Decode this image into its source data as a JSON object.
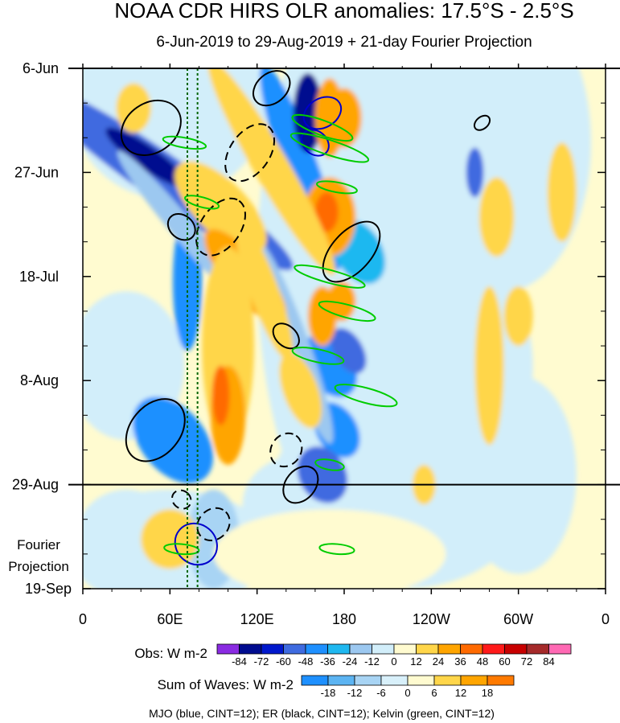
{
  "chart_data": {
    "type": "heatmap",
    "title": "NOAA CDR HIRS OLR anomalies: 17.5°S - 2.5°S",
    "subtitle": "6-Jun-2019 to 29-Aug-2019 + 21-day Fourier Projection",
    "x_ticks": [
      "0",
      "60E",
      "120E",
      "180",
      "120W",
      "60W",
      "0"
    ],
    "x_range_deg_east": [
      0,
      360
    ],
    "x_tick_values": [
      0,
      60,
      120,
      180,
      240,
      300,
      360
    ],
    "y_ticks": [
      "6-Jun",
      "27-Jun",
      "18-Jul",
      "8-Aug",
      "29-Aug",
      "19-Sep"
    ],
    "y_range": [
      "2019-06-06",
      "2019-09-19"
    ],
    "y_tick_values": [
      "2019-06-06",
      "2019-06-27",
      "2019-07-18",
      "2019-08-08",
      "2019-08-29",
      "2019-09-19"
    ],
    "y_direction": "time increases downward",
    "projection_label": "Fourier Projection",
    "projection_start": "2019-08-29",
    "reference_lines_deg_east": [
      72,
      79
    ],
    "obs_colorbar": {
      "label": "Obs: W m-2",
      "levels": [
        -84,
        -72,
        -60,
        -48,
        -36,
        -24,
        -12,
        0,
        12,
        24,
        36,
        48,
        60,
        72,
        84
      ],
      "colors": [
        "#8a2be2",
        "#000c8f",
        "#0018cc",
        "#3f6be0",
        "#1e90ff",
        "#1fb8f0",
        "#9cc8f0",
        "#d2eefa",
        "#fffbd0",
        "#ffd64a",
        "#ffa500",
        "#ff6a00",
        "#ff1a1a",
        "#c80000",
        "#a52a2a",
        "#ff69b4"
      ]
    },
    "waves_colorbar": {
      "label": "Sum of Waves: W m-2",
      "levels": [
        -18,
        -12,
        -6,
        0,
        6,
        12,
        18
      ],
      "colors": [
        "#1e90ff",
        "#5cb4f2",
        "#a8d4f4",
        "#d8f0fa",
        "#fffbd0",
        "#ffd64a",
        "#ffa500",
        "#ff7a00"
      ]
    },
    "legend_text": "MJO (blue, CINT=12); ER (black, CINT=12); Kelvin (green, CINT=12)",
    "series": [
      {
        "name": "MJO",
        "color": "#0000cc",
        "cint": 12
      },
      {
        "name": "ER",
        "color": "#000000",
        "cint": 12
      },
      {
        "name": "Kelvin",
        "color": "#00cc00",
        "cint": 12
      }
    ]
  }
}
